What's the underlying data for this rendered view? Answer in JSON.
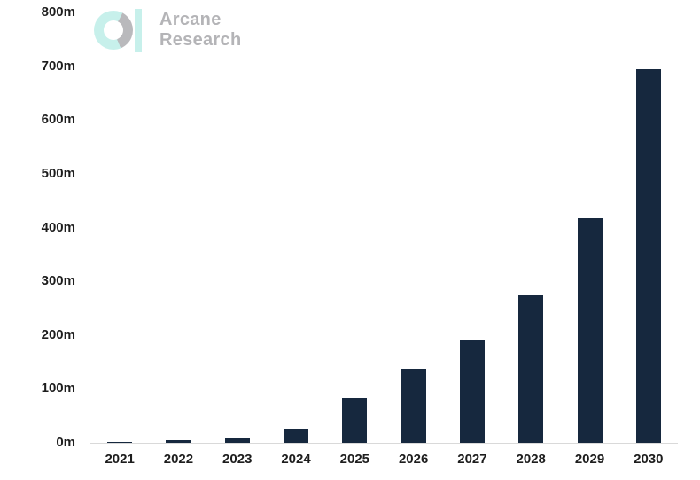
{
  "logo": {
    "line1": "Arcane",
    "line2": "Research",
    "icon": "arcane-a-icon",
    "teal_color": "#c7f0eb",
    "gray_color": "#b9b9bc",
    "text_color": "#b4b4b7"
  },
  "chart_data": {
    "type": "bar",
    "title": "",
    "xlabel": "",
    "ylabel": "",
    "unit": "m",
    "categories": [
      "2021",
      "2022",
      "2023",
      "2024",
      "2025",
      "2026",
      "2027",
      "2028",
      "2029",
      "2030"
    ],
    "values": [
      1,
      5,
      8,
      27,
      82,
      137,
      192,
      276,
      418,
      695
    ],
    "ylim": [
      0,
      800
    ],
    "ytick_step": 100,
    "ytick_labels": [
      "0m",
      "100m",
      "200m",
      "300m",
      "400m",
      "500m",
      "600m",
      "700m",
      "800m"
    ],
    "grid": false,
    "legend": false,
    "bar_color": "#16283e",
    "axis_line_color": "#d9d9d9",
    "label_color": "#1d1d1d",
    "background_color": "#ffffff"
  }
}
